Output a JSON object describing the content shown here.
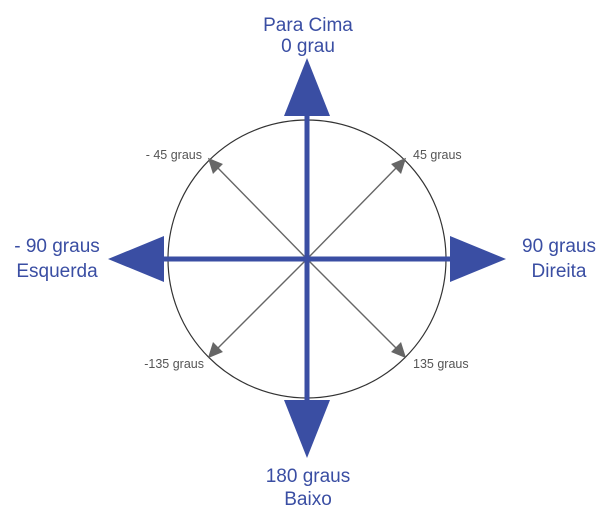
{
  "diagram": {
    "colors": {
      "main_arrow": "#3a4ea3",
      "diagonal_arrow": "#666666",
      "circle_stroke": "#333333",
      "main_text": "#3a4ea3",
      "small_text": "#555555"
    },
    "up": {
      "line1": "Para Cima",
      "line2": "0 grau"
    },
    "down": {
      "line1": "180 graus",
      "line2": "Baixo"
    },
    "left": {
      "line1": "- 90 graus",
      "line2": "Esquerda"
    },
    "right": {
      "line1": "90 graus",
      "line2": "Direita"
    },
    "diagonals": {
      "upper_left": "- 45 graus",
      "upper_right": "45 graus",
      "lower_left": "-135 graus",
      "lower_right": "135 graus"
    }
  }
}
